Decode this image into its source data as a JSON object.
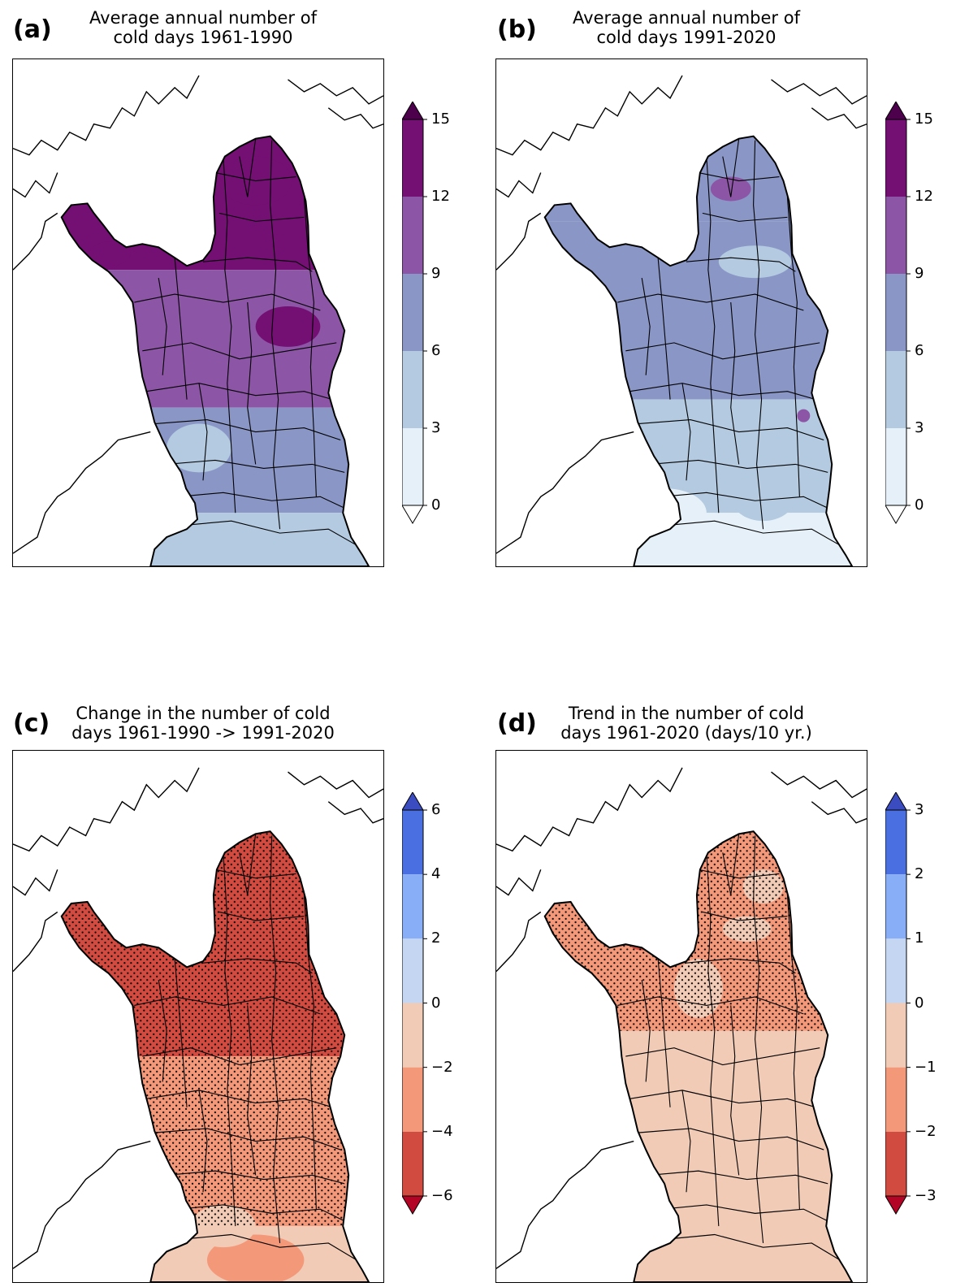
{
  "panels": [
    {
      "id": "a",
      "letter": "(a)",
      "title_line1": "Average annual number of",
      "title_line2": "cold days 1961-1990",
      "variable": "mean",
      "stippling": false,
      "colorbar": {
        "ticks": [
          "15",
          "12",
          "9",
          "6",
          "3",
          "0"
        ],
        "colors": [
          "#740f74",
          "#8c55a5",
          "#8a97c6",
          "#b3cae1",
          "#e6f0f8"
        ],
        "extend_top": "#4d004b",
        "extend_bottom": "#ffffff"
      },
      "field": {
        "description": "Lapland & north mostly 12-15, central 9-12, southern area 6-9, southwest coast 3-6",
        "regions": [
          "north_peak:12-15",
          "north_band:12-15",
          "central_east:12-15",
          "middle:9-12",
          "south:6-9",
          "southwest:3-6",
          "sea:3-6"
        ]
      }
    },
    {
      "id": "b",
      "letter": "(b)",
      "title_line1": "Average annual number of",
      "title_line2": "cold days 1991-2020",
      "variable": "mean",
      "stippling": false,
      "colorbar": {
        "ticks": [
          "15",
          "12",
          "9",
          "6",
          "3",
          "0"
        ],
        "colors": [
          "#740f74",
          "#8c55a5",
          "#8a97c6",
          "#b3cae1",
          "#e6f0f8"
        ],
        "extend_top": "#4d004b",
        "extend_bottom": "#ffffff"
      },
      "field": {
        "description": "North 6-9 with small 9-12 spots, middle 6-9, south 3-6, coast 0-3",
        "regions": [
          "north:6-9",
          "middle:6-9",
          "south:3-6",
          "coast:0-3"
        ]
      }
    },
    {
      "id": "c",
      "letter": "(c)",
      "title_line1": "Change in the number of cold",
      "title_line2": "days 1961-1990 -> 1991-2020",
      "variable": "change",
      "stippling": true,
      "colorbar": {
        "ticks": [
          "6",
          "4",
          "2",
          "0",
          "−2",
          "−4",
          "−6"
        ],
        "colors": [
          "#4a6fe0",
          "#89aef8",
          "#c5d6f2",
          "#f1cbb6",
          "#f4987a",
          "#d24b40"
        ],
        "extend_top": "#3b4cc0",
        "extend_bottom": "#b40426"
      },
      "field": {
        "description": "Strong decrease in north (-4 to -6), moderate in south (-2 to -4), small on coast (0 to -2)"
      }
    },
    {
      "id": "d",
      "letter": "(d)",
      "title_line1": "Trend in the number of cold",
      "title_line2": "days 1961-2020 (days/10 yr.)",
      "variable": "trend",
      "stippling": true,
      "colorbar": {
        "ticks": [
          "3",
          "2",
          "1",
          "0",
          "−1",
          "−2",
          "−3"
        ],
        "colors": [
          "#4a6fe0",
          "#89aef8",
          "#c5d6f2",
          "#f1cbb6",
          "#f4987a",
          "#d24b40"
        ],
        "extend_top": "#3b4cc0",
        "extend_bottom": "#b40426"
      },
      "field": {
        "description": "North -1 to -2 days/10 yr, south 0 to -1"
      }
    }
  ]
}
